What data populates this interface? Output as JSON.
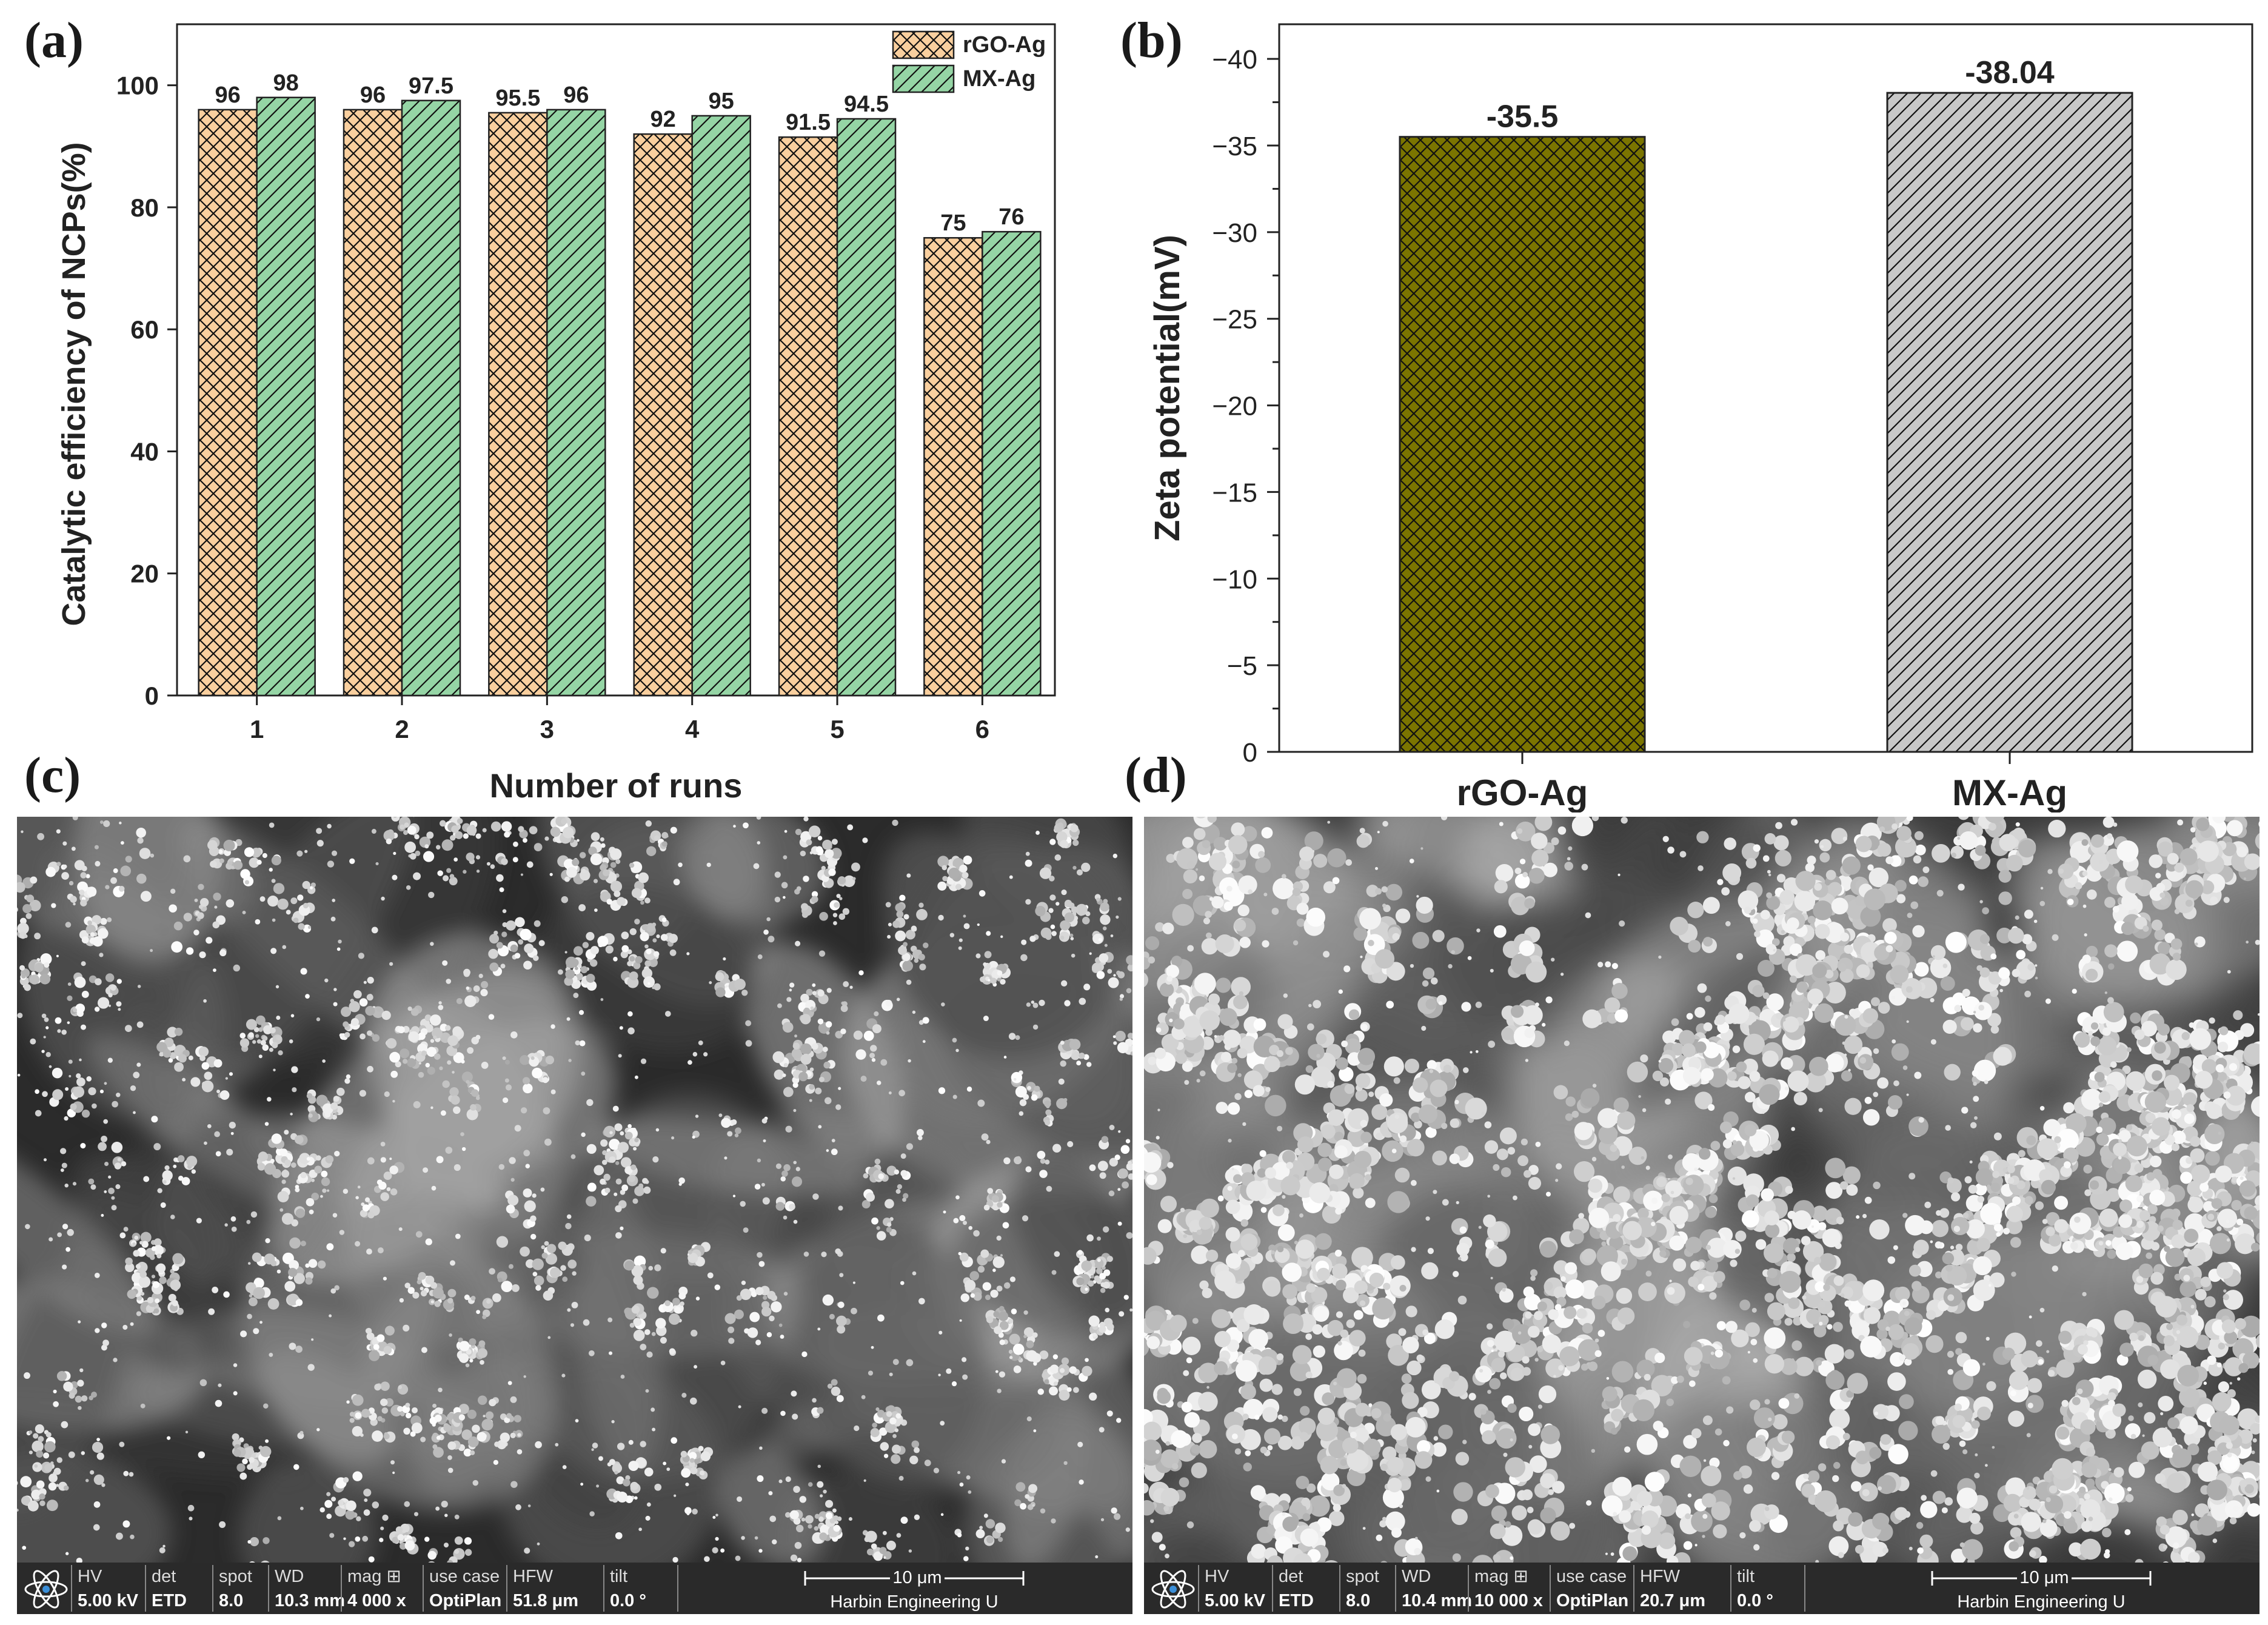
{
  "panels": {
    "a": "(a)",
    "b": "(b)",
    "c": "(c)",
    "d": "(d)"
  },
  "chart_data": [
    {
      "type": "bar",
      "xlabel": "Number of runs",
      "ylabel": "Catalytic efficiency of NCPs(%)",
      "categories": [
        "1",
        "2",
        "3",
        "4",
        "5",
        "6"
      ],
      "ylim": [
        0,
        110
      ],
      "yticks": [
        "0",
        "20",
        "40",
        "60",
        "80",
        "100"
      ],
      "legend_position": "top-right",
      "series": [
        {
          "name": "rGO-Ag",
          "values": [
            96,
            96,
            95.5,
            92,
            91.5,
            75
          ],
          "labels": [
            "96",
            "96",
            "95.5",
            "92",
            "91.5",
            "75"
          ],
          "color": "#f9cf9e",
          "hatch": "crosshatch"
        },
        {
          "name": "MX-Ag",
          "values": [
            98,
            97.5,
            96,
            95,
            94.5,
            76
          ],
          "labels": [
            "98",
            "97.5",
            "96",
            "95",
            "94.5",
            "76"
          ],
          "color": "#95d5a5",
          "hatch": "diagonal"
        }
      ]
    },
    {
      "type": "bar",
      "xlabel": "",
      "ylabel": "Zeta potential(mV)",
      "categories": [
        "rGO-Ag",
        "MX-Ag"
      ],
      "ylim": [
        0,
        -42
      ],
      "yticks": [
        "0",
        "−5",
        "−10",
        "−15",
        "−20",
        "−25",
        "−30",
        "−35",
        "−40"
      ],
      "values": [
        -35.5,
        -38.04
      ],
      "labels": [
        "-35.5",
        "-38.04"
      ],
      "colors": [
        "#7b7500",
        "#c8c8c8"
      ],
      "hatches": [
        "crosshatch",
        "diagonal"
      ]
    }
  ],
  "sem": [
    {
      "fields": [
        {
          "label": "HV",
          "value": "5.00 kV"
        },
        {
          "label": "det",
          "value": "ETD"
        },
        {
          "label": "spot",
          "value": "8.0"
        },
        {
          "label": "WD",
          "value": "10.3 mm"
        },
        {
          "label": "mag ⊞",
          "value": "4 000 x"
        },
        {
          "label": "use case",
          "value": "OptiPlan"
        },
        {
          "label": "HFW",
          "value": "51.8 μm"
        },
        {
          "label": "tilt",
          "value": "0.0 °"
        }
      ],
      "scale": "10 μm",
      "institution": "Harbin Engineering U"
    },
    {
      "fields": [
        {
          "label": "HV",
          "value": "5.00 kV"
        },
        {
          "label": "det",
          "value": "ETD"
        },
        {
          "label": "spot",
          "value": "8.0"
        },
        {
          "label": "WD",
          "value": "10.4 mm"
        },
        {
          "label": "mag ⊞",
          "value": "10 000 x"
        },
        {
          "label": "use case",
          "value": "OptiPlan"
        },
        {
          "label": "HFW",
          "value": "20.7 μm"
        },
        {
          "label": "tilt",
          "value": "0.0 °"
        }
      ],
      "scale": "10 μm",
      "institution": "Harbin Engineering U"
    }
  ]
}
